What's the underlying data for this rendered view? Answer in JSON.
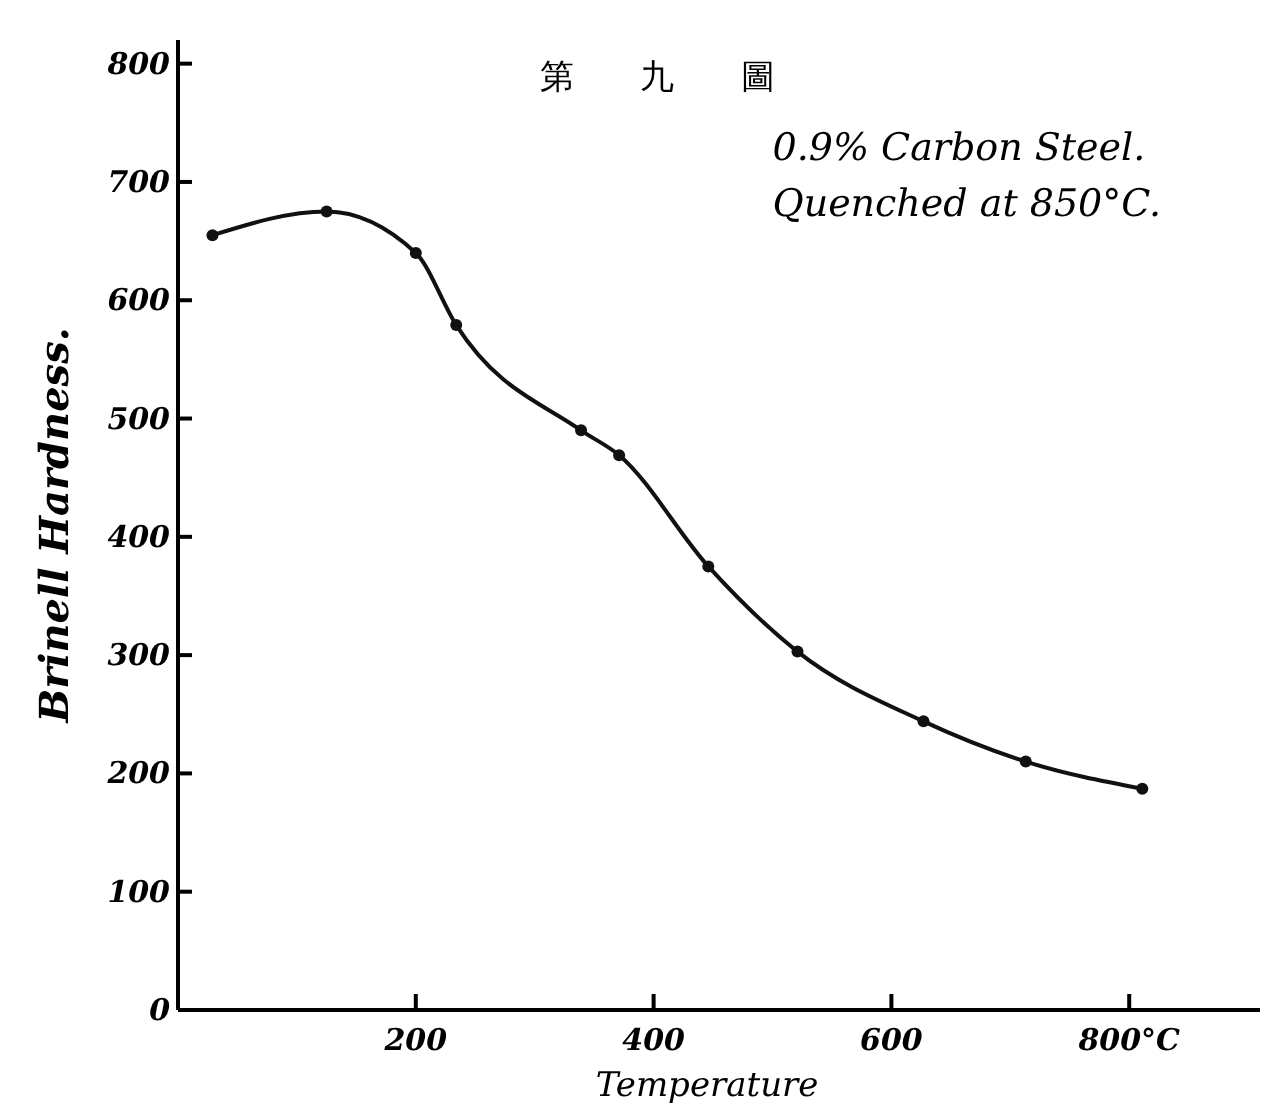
{
  "chart_data": {
    "type": "line",
    "title": "第 九 圖",
    "xlabel": "Temperature",
    "ylabel": "Brinell Hardness.",
    "annotations": [
      "0.9% Carbon Steel.",
      "Quenched at 850°C."
    ],
    "x": [
      29,
      125,
      200,
      234,
      339,
      371,
      446,
      521,
      627,
      713,
      811
    ],
    "series": [
      {
        "color": "#111111",
        "values": [
          655,
          675,
          640,
          579,
          490,
          469,
          375,
          303,
          244,
          210,
          187
        ]
      }
    ],
    "xlim": [
      0,
      910
    ],
    "xticks": [
      200,
      400,
      600,
      {
        "value": 800,
        "label": "800°C"
      }
    ],
    "ylim": [
      0,
      820
    ],
    "yticks": [
      0,
      100,
      200,
      300,
      400,
      500,
      600,
      700,
      800
    ],
    "grid": false,
    "marker": "circle",
    "line_style": "solid"
  }
}
